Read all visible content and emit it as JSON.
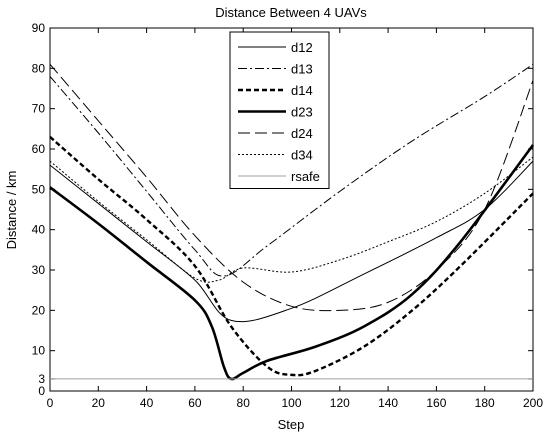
{
  "chart_data": {
    "type": "line",
    "title": "Distance Between 4 UAVs",
    "xlabel": "Step",
    "ylabel": "Distance / km",
    "xlim": [
      0,
      200
    ],
    "ylim": [
      0,
      90
    ],
    "xticks": [
      0,
      20,
      40,
      60,
      80,
      100,
      120,
      140,
      160,
      180,
      200
    ],
    "yticks": [
      0,
      3,
      10,
      20,
      30,
      40,
      50,
      60,
      70,
      80,
      90
    ],
    "grid": false,
    "legend_position": "top-center",
    "series": [
      {
        "name": "d12",
        "style": "solid-thin",
        "x": [
          0,
          20,
          40,
          60,
          75,
          100,
          130,
          160,
          180,
          200
        ],
        "y": [
          56,
          46.5,
          37,
          27.5,
          17.5,
          20.5,
          29,
          38,
          45,
          57
        ]
      },
      {
        "name": "d13",
        "style": "dashdot",
        "x": [
          0,
          20,
          40,
          60,
          72,
          90,
          120,
          150,
          180,
          200
        ],
        "y": [
          78,
          64,
          49.5,
          35,
          28.5,
          36,
          49.5,
          62,
          73,
          81
        ]
      },
      {
        "name": "d14",
        "style": "dashed-thick",
        "x": [
          0,
          20,
          40,
          60,
          75,
          90,
          100,
          110,
          130,
          150,
          170,
          200
        ],
        "y": [
          63,
          52.5,
          42.5,
          31,
          16,
          6,
          4,
          5,
          11,
          20,
          31,
          49
        ]
      },
      {
        "name": "d23",
        "style": "solid-thick",
        "x": [
          0,
          20,
          40,
          60,
          67,
          72,
          75,
          80,
          90,
          110,
          130,
          150,
          170,
          200
        ],
        "y": [
          50.5,
          41.5,
          32,
          22.5,
          16,
          6,
          3,
          4.5,
          7.5,
          11,
          16,
          24,
          37,
          61
        ]
      },
      {
        "name": "d24",
        "style": "long-dash",
        "x": [
          0,
          20,
          40,
          60,
          80,
          100,
          120,
          140,
          160,
          180,
          200
        ],
        "y": [
          81,
          67,
          53,
          38.5,
          27,
          21,
          20,
          22,
          30,
          45,
          77
        ]
      },
      {
        "name": "d34",
        "style": "dotted",
        "x": [
          0,
          20,
          40,
          60,
          70,
          80,
          100,
          120,
          140,
          160,
          180,
          200
        ],
        "y": [
          57,
          47,
          37.5,
          28,
          27.5,
          30.5,
          29.5,
          32.5,
          37,
          42,
          49,
          58
        ]
      },
      {
        "name": "rsafe",
        "style": "solid-gray",
        "x": [
          0,
          200
        ],
        "y": [
          3,
          3
        ]
      }
    ]
  }
}
